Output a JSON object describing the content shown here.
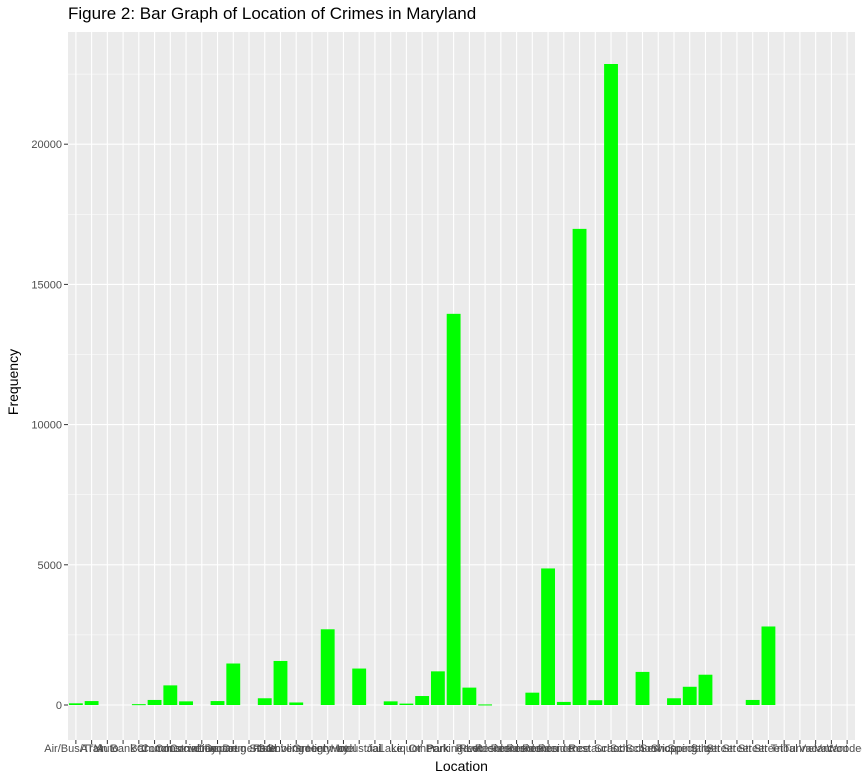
{
  "chart_data": {
    "type": "bar",
    "title": "Figure 2: Bar Graph of Location of Crimes in Maryland",
    "xlabel": "Location",
    "ylabel": "Frequency",
    "ylim": [
      0,
      23000
    ],
    "yticks": [
      0,
      5000,
      10000,
      15000,
      20000
    ],
    "grid": true,
    "legend": "none",
    "bar_color": "#00ff00",
    "panel_color": "#ebebeb",
    "categories": [
      "Air/Bus/Train Terminal",
      "ATM Separate from Bank",
      "Auto Dealership",
      "Bank",
      "Bar/Night Club",
      "Church/Synagogue/Temple",
      "Commercial/Office Building",
      "Construction Site",
      "Convenience Store",
      "Daycare Facility",
      "Department/Discount Store",
      "Drug Store/Doctor's Office/Hospital",
      "Field/Woods",
      "Gambling Facility",
      "Government/Public Building",
      "Grocery/Supermarket",
      "Highway/Road/Alley/Street",
      "Hotel/Motel",
      "Industrial Site",
      "Jail/Prison",
      "Lake/Waterway",
      "Liquor Store",
      "Other/Unknown",
      "Park/Playground",
      "Parking Lot",
      "Pawn Shop",
      "Residence - Apartment",
      "Residence - Driveway",
      "Residence - Single Family",
      "Residence - Townhouse",
      "Residence - Yard",
      "Residence/Home",
      "Rest Area",
      "Restaurant",
      "School - College/University",
      "School - Elementary",
      "School - Middle/High",
      "Service/Gas Station",
      "Shopping Mall",
      "Specialty Store",
      "Street - Commercial",
      "Street - In Vehicle",
      "Street - Residential",
      "Street - Other",
      "Street - Public",
      "Tribal Lands",
      "Tunnel/Bridge",
      "Vacant Building",
      "Vacant Lot",
      "Wooded Area"
    ],
    "values": [
      60,
      140,
      0,
      0,
      30,
      180,
      700,
      130,
      0,
      140,
      1480,
      0,
      240,
      1570,
      90,
      0,
      2700,
      0,
      1300,
      0,
      130,
      50,
      320,
      1200,
      13950,
      620,
      20,
      0,
      0,
      440,
      4870,
      110,
      16980,
      170,
      22860,
      0,
      1180,
      0,
      240,
      650,
      1080,
      0,
      0,
      180,
      2800,
      0,
      0,
      0,
      0,
      0
    ],
    "tick_labels_visible": [
      "Air/Bus/Train",
      "ATM",
      "Auto",
      "Bank",
      "Bar",
      "Church",
      "Commercial",
      "Construction",
      "Convenience",
      "Daycare",
      "Department",
      "Drug Store",
      "Field",
      "Gambling",
      "Government",
      "Grocery",
      "Highway",
      "Hotel",
      "Industrial",
      "Jail",
      "Lake",
      "Liquor",
      "Other",
      "Park",
      "Parking Lot",
      "Pawn",
      "Residence",
      "Residence",
      "Residence",
      "Residence",
      "Residence",
      "Residence",
      "Rest",
      "Restaurant",
      "School",
      "School",
      "School",
      "Service",
      "Shopping",
      "Specialty",
      "Street",
      "Street",
      "Street",
      "Street",
      "Street",
      "Tribal",
      "Tunnel",
      "Vacant",
      "Vacant",
      "Wooded"
    ]
  }
}
